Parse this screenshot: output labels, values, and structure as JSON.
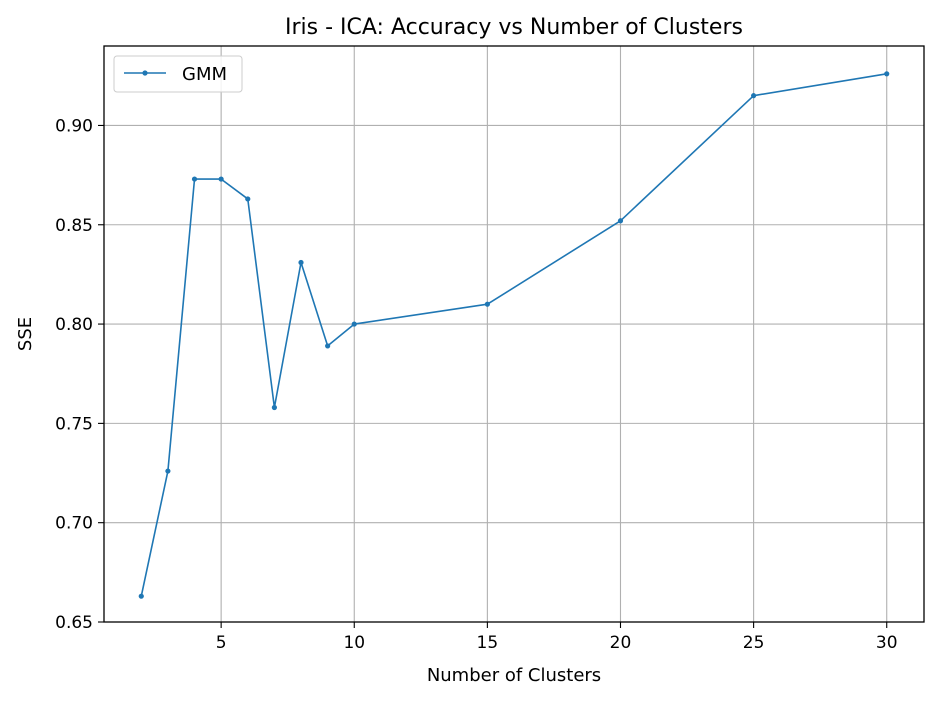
{
  "chart_data": {
    "type": "line",
    "title": "Iris - ICA: Accuracy vs Number of Clusters",
    "xlabel": "Number of Clusters",
    "ylabel": "SSE",
    "xlim": [
      0.6,
      31.4
    ],
    "ylim": [
      0.65,
      0.94
    ],
    "xticks": [
      5,
      10,
      15,
      20,
      25,
      30
    ],
    "yticks": [
      0.65,
      0.7,
      0.75,
      0.8,
      0.85,
      0.9
    ],
    "ytick_labels": [
      "0.65",
      "0.70",
      "0.75",
      "0.80",
      "0.85",
      "0.90"
    ],
    "grid": true,
    "legend_position": "upper-left",
    "series": [
      {
        "name": "GMM",
        "color": "#1f77b4",
        "marker": "dot",
        "x": [
          2,
          3,
          4,
          5,
          6,
          7,
          8,
          9,
          10,
          15,
          20,
          25,
          30
        ],
        "y": [
          0.663,
          0.726,
          0.873,
          0.873,
          0.863,
          0.758,
          0.831,
          0.789,
          0.8,
          0.81,
          0.852,
          0.915,
          0.926
        ]
      }
    ]
  }
}
